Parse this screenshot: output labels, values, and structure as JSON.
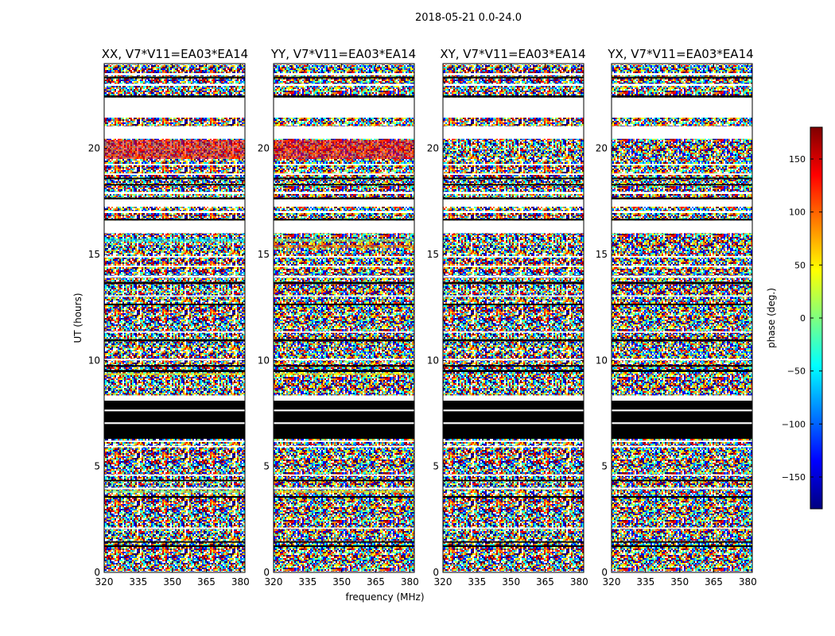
{
  "figure": {
    "suptitle": "2018-05-21 0.0-24.0"
  },
  "chart_data": {
    "type": "heatmap",
    "title": "2018-05-21 0.0-24.0",
    "xlabel": "frequency (MHz)",
    "ylabel": "UT (hours)",
    "xlim": [
      320,
      382
    ],
    "ylim": [
      0,
      24
    ],
    "xticks": [
      320,
      335,
      350,
      365,
      380
    ],
    "yticks": [
      0,
      5,
      10,
      15,
      20
    ],
    "panels": [
      {
        "title": "XX, V7*V11=EA03*EA14"
      },
      {
        "title": "YY, V7*V11=EA03*EA14"
      },
      {
        "title": "XY, V7*V11=EA03*EA14"
      },
      {
        "title": "YX, V7*V11=EA03*EA14"
      }
    ],
    "colorbar": {
      "label": "phase (deg.)",
      "range": [
        -180,
        180
      ],
      "ticks": [
        -150,
        -100,
        -50,
        0,
        50,
        100,
        150
      ],
      "colormap": "jet",
      "colors": [
        "#00007f",
        "#0000ff",
        "#007fff",
        "#00ffff",
        "#7fff7f",
        "#ffff00",
        "#ff7f00",
        "#ff0000",
        "#7f0000"
      ]
    },
    "colors": {
      "blank": "#ffffff",
      "black": "#000000"
    },
    "bands": [
      {
        "from": 0,
        "to": 0.05,
        "kind": "blank"
      },
      {
        "from": 1.2,
        "to": 1.28,
        "kind": "black"
      },
      {
        "from": 1.4,
        "to": 1.47,
        "kind": "black"
      },
      {
        "from": 2.05,
        "to": 2.12,
        "kind": "blank"
      },
      {
        "from": 3.52,
        "to": 3.6,
        "kind": "black"
      },
      {
        "from": 3.92,
        "to": 4.0,
        "kind": "blank"
      },
      {
        "from": 4.3,
        "to": 4.37,
        "kind": "black"
      },
      {
        "from": 4.55,
        "to": 4.62,
        "kind": "blank"
      },
      {
        "from": 5.9,
        "to": 5.97,
        "kind": "blank"
      },
      {
        "from": 6.15,
        "to": 6.22,
        "kind": "blank"
      },
      {
        "from": 6.3,
        "to": 8.1,
        "kind": "black"
      },
      {
        "from": 7.0,
        "to": 7.08,
        "kind": "blank"
      },
      {
        "from": 7.6,
        "to": 7.68,
        "kind": "blank"
      },
      {
        "from": 8.1,
        "to": 8.35,
        "kind": "blank"
      },
      {
        "from": 9.45,
        "to": 9.55,
        "kind": "black"
      },
      {
        "from": 9.7,
        "to": 9.78,
        "kind": "black"
      },
      {
        "from": 10.0,
        "to": 10.08,
        "kind": "blank"
      },
      {
        "from": 10.9,
        "to": 11.0,
        "kind": "black"
      },
      {
        "from": 11.3,
        "to": 11.37,
        "kind": "blank"
      },
      {
        "from": 12.6,
        "to": 12.68,
        "kind": "black"
      },
      {
        "from": 13.0,
        "to": 13.07,
        "kind": "blank"
      },
      {
        "from": 13.6,
        "to": 13.7,
        "kind": "black"
      },
      {
        "from": 13.9,
        "to": 14.0,
        "kind": "blank"
      },
      {
        "from": 14.4,
        "to": 14.47,
        "kind": "blank"
      },
      {
        "from": 14.85,
        "to": 14.92,
        "kind": "blank"
      },
      {
        "from": 16.0,
        "to": 16.6,
        "kind": "blank"
      },
      {
        "from": 16.6,
        "to": 16.68,
        "kind": "black"
      },
      {
        "from": 16.95,
        "to": 17.05,
        "kind": "blank"
      },
      {
        "from": 17.25,
        "to": 17.6,
        "kind": "blank"
      },
      {
        "from": 17.6,
        "to": 17.68,
        "kind": "black"
      },
      {
        "from": 17.85,
        "to": 17.95,
        "kind": "blank"
      },
      {
        "from": 18.25,
        "to": 18.32,
        "kind": "black"
      },
      {
        "from": 18.55,
        "to": 18.62,
        "kind": "black"
      },
      {
        "from": 18.75,
        "to": 18.82,
        "kind": "blank"
      },
      {
        "from": 19.2,
        "to": 19.27,
        "kind": "blank"
      },
      {
        "from": 20.45,
        "to": 21.05,
        "kind": "blank"
      },
      {
        "from": 21.45,
        "to": 22.4,
        "kind": "blank"
      },
      {
        "from": 22.4,
        "to": 22.5,
        "kind": "black"
      },
      {
        "from": 22.95,
        "to": 23.05,
        "kind": "blank"
      },
      {
        "from": 23.3,
        "to": 23.38,
        "kind": "black"
      },
      {
        "from": 23.45,
        "to": 23.55,
        "kind": "blank"
      },
      {
        "from": 23.95,
        "to": 24.0,
        "kind": "blank"
      }
    ],
    "tinted_bands": [
      {
        "from": 3.75,
        "to": 3.88,
        "color": "#7fff7f",
        "panels": [
          0
        ]
      },
      {
        "from": 3.75,
        "to": 3.88,
        "color": "#ffff00",
        "panels": [
          1
        ]
      },
      {
        "from": 9.3,
        "to": 9.42,
        "color": "#ffff00",
        "panels": [
          0,
          1
        ]
      },
      {
        "from": 15.3,
        "to": 15.45,
        "color": "#ff7f00",
        "panels": [
          1
        ]
      },
      {
        "from": 15.6,
        "to": 15.75,
        "color": "#00ffff",
        "panels": [
          0
        ]
      },
      {
        "from": 15.6,
        "to": 15.75,
        "color": "#7fff7f",
        "panels": [
          1
        ]
      },
      {
        "from": 19.5,
        "to": 20.4,
        "color": "#ff0000",
        "panels": [
          0,
          1
        ]
      }
    ]
  }
}
